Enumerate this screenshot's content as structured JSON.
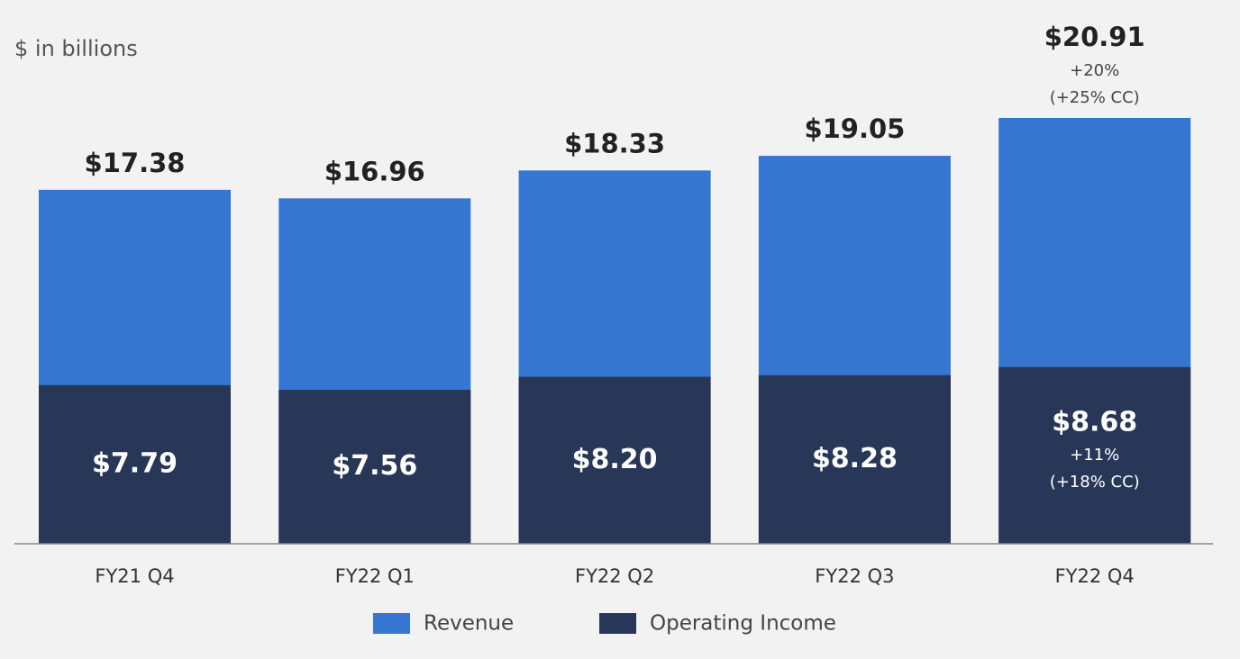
{
  "chart_data": {
    "type": "bar",
    "subtitle": "$ in billions",
    "categories": [
      "FY21 Q4",
      "FY22 Q1",
      "FY22 Q2",
      "FY22 Q3",
      "FY22 Q4"
    ],
    "series": [
      {
        "name": "Revenue",
        "color": "#3476d0",
        "values": [
          17.38,
          16.96,
          18.33,
          19.05,
          20.91
        ],
        "value_labels": [
          "$17.38",
          "$16.96",
          "$18.33",
          "$19.05",
          "$20.91"
        ],
        "annotations": [
          "+20%",
          "(+25% CC)"
        ]
      },
      {
        "name": "Operating Income",
        "color": "#283758",
        "values": [
          7.79,
          7.56,
          8.2,
          8.28,
          8.68
        ],
        "value_labels": [
          "$7.79",
          "$7.56",
          "$8.20",
          "$8.28",
          "$8.68"
        ],
        "annotations": [
          "+11%",
          "(+18% CC)"
        ]
      }
    ]
  }
}
